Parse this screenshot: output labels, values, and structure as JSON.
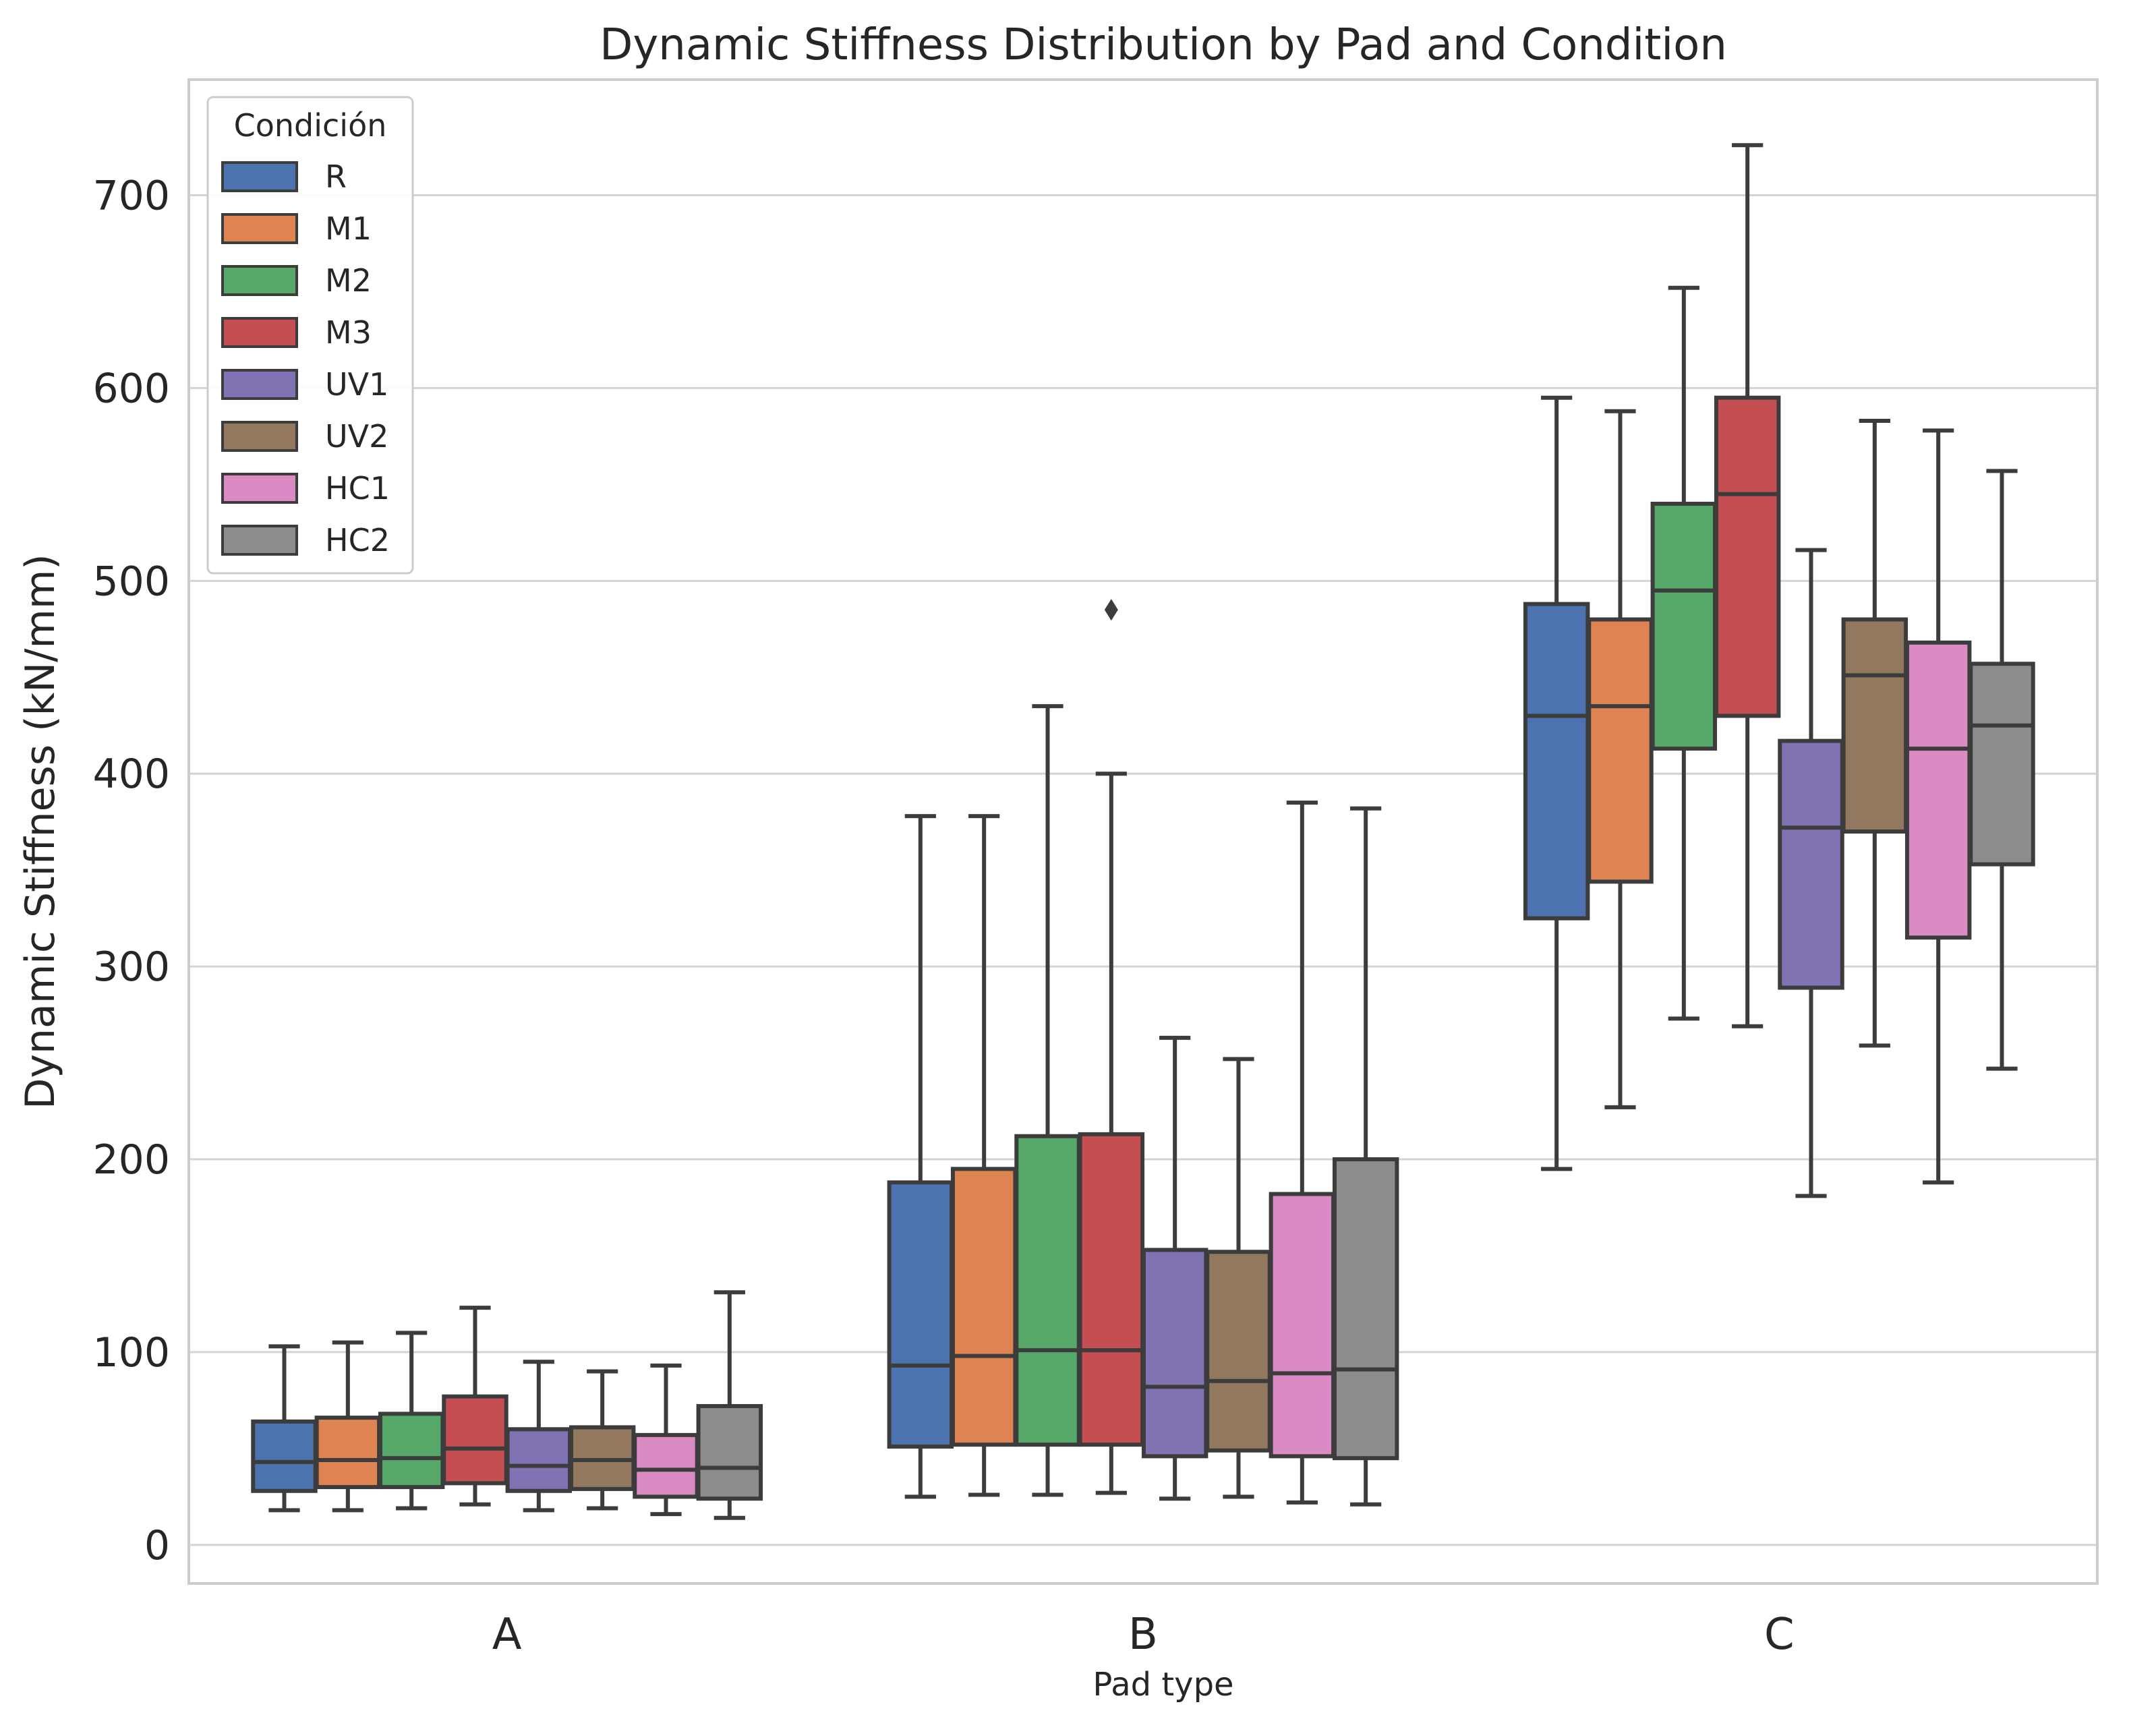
{
  "chart_data": {
    "type": "boxplot",
    "title": "Dynamic Stiffness Distribution by Pad and Condition",
    "xlabel": "Pad type",
    "ylabel": "Dynamic Stiffness (kN/mm)",
    "ylim": [
      -20,
      760
    ],
    "yticks": [
      0,
      100,
      200,
      300,
      400,
      500,
      600,
      700
    ],
    "grid": true,
    "legend": {
      "title": "Condición",
      "position": "top-left"
    },
    "categories": [
      "A",
      "B",
      "C"
    ],
    "series": [
      {
        "name": "R",
        "color": "#4c72b0",
        "stats": [
          {
            "min": 18,
            "q1": 28,
            "median": 43,
            "q3": 64,
            "max": 103
          },
          {
            "min": 25,
            "q1": 51,
            "median": 93,
            "q3": 188,
            "max": 378
          },
          {
            "min": 195,
            "q1": 325,
            "median": 430,
            "q3": 488,
            "max": 595
          }
        ]
      },
      {
        "name": "M1",
        "color": "#dd8452",
        "stats": [
          {
            "min": 18,
            "q1": 30,
            "median": 44,
            "q3": 66,
            "max": 105
          },
          {
            "min": 26,
            "q1": 52,
            "median": 98,
            "q3": 195,
            "max": 378
          },
          {
            "min": 227,
            "q1": 344,
            "median": 435,
            "q3": 480,
            "max": 588
          }
        ]
      },
      {
        "name": "M2",
        "color": "#55a868",
        "stats": [
          {
            "min": 19,
            "q1": 30,
            "median": 45,
            "q3": 68,
            "max": 110
          },
          {
            "min": 26,
            "q1": 52,
            "median": 101,
            "q3": 212,
            "max": 435
          },
          {
            "min": 273,
            "q1": 413,
            "median": 495,
            "q3": 540,
            "max": 652
          }
        ]
      },
      {
        "name": "M3",
        "color": "#c44e52",
        "stats": [
          {
            "min": 21,
            "q1": 32,
            "median": 50,
            "q3": 77,
            "max": 123
          },
          {
            "min": 27,
            "q1": 52,
            "median": 101,
            "q3": 213,
            "max": 400,
            "outliers": [
              485
            ]
          },
          {
            "min": 269,
            "q1": 430,
            "median": 545,
            "q3": 595,
            "max": 726
          }
        ]
      },
      {
        "name": "UV1",
        "color": "#8172b3",
        "stats": [
          {
            "min": 18,
            "q1": 28,
            "median": 41,
            "q3": 60,
            "max": 95
          },
          {
            "min": 24,
            "q1": 46,
            "median": 82,
            "q3": 153,
            "max": 263
          },
          {
            "min": 181,
            "q1": 289,
            "median": 372,
            "q3": 417,
            "max": 516
          }
        ]
      },
      {
        "name": "UV2",
        "color": "#937860",
        "stats": [
          {
            "min": 19,
            "q1": 29,
            "median": 44,
            "q3": 61,
            "max": 90
          },
          {
            "min": 25,
            "q1": 49,
            "median": 85,
            "q3": 152,
            "max": 252
          },
          {
            "min": 259,
            "q1": 370,
            "median": 451,
            "q3": 480,
            "max": 583
          }
        ]
      },
      {
        "name": "HC1",
        "color": "#da8bc3",
        "stats": [
          {
            "min": 16,
            "q1": 25,
            "median": 39,
            "q3": 57,
            "max": 93
          },
          {
            "min": 22,
            "q1": 46,
            "median": 89,
            "q3": 182,
            "max": 385
          },
          {
            "min": 188,
            "q1": 315,
            "median": 413,
            "q3": 468,
            "max": 578
          }
        ]
      },
      {
        "name": "HC2",
        "color": "#8c8c8c",
        "stats": [
          {
            "min": 14,
            "q1": 24,
            "median": 40,
            "q3": 72,
            "max": 131
          },
          {
            "min": 21,
            "q1": 45,
            "median": 91,
            "q3": 200,
            "max": 382
          },
          {
            "min": 247,
            "q1": 353,
            "median": 425,
            "q3": 457,
            "max": 557
          }
        ]
      }
    ]
  }
}
